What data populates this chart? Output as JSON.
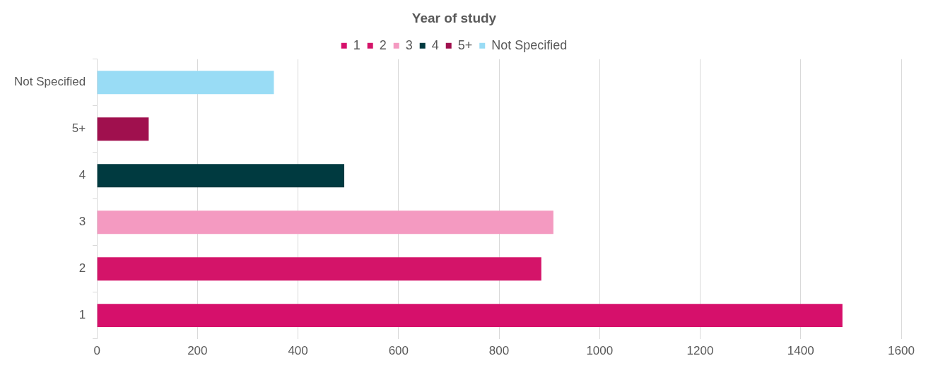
{
  "chart_data": {
    "type": "bar",
    "orientation": "horizontal",
    "stacked": true,
    "title": "Year of study",
    "categories": [
      "Not Specified",
      "5+",
      "4",
      "3",
      "2",
      "1"
    ],
    "series": [
      {
        "name": "1",
        "color": "#d6106b",
        "values": [
          null,
          null,
          null,
          null,
          null,
          1483
        ]
      },
      {
        "name": "2",
        "color": "#d41469",
        "values": [
          null,
          null,
          null,
          null,
          884,
          null
        ]
      },
      {
        "name": "3",
        "color": "#f49ac1",
        "values": [
          null,
          null,
          null,
          908,
          null,
          null
        ]
      },
      {
        "name": "4",
        "color": "#003a40",
        "values": [
          null,
          null,
          492,
          null,
          null,
          null
        ]
      },
      {
        "name": "5+",
        "color": "#a0104e",
        "values": [
          null,
          103,
          null,
          null,
          null,
          null
        ]
      },
      {
        "name": "Not Specified",
        "color": "#99dcf5",
        "values": [
          352,
          null,
          null,
          null,
          null,
          null
        ]
      }
    ],
    "xlim": [
      0,
      1600
    ],
    "xticks": [
      0,
      200,
      400,
      600,
      800,
      1000,
      1200,
      1400,
      1600
    ],
    "grid": "x",
    "legend": "top"
  }
}
